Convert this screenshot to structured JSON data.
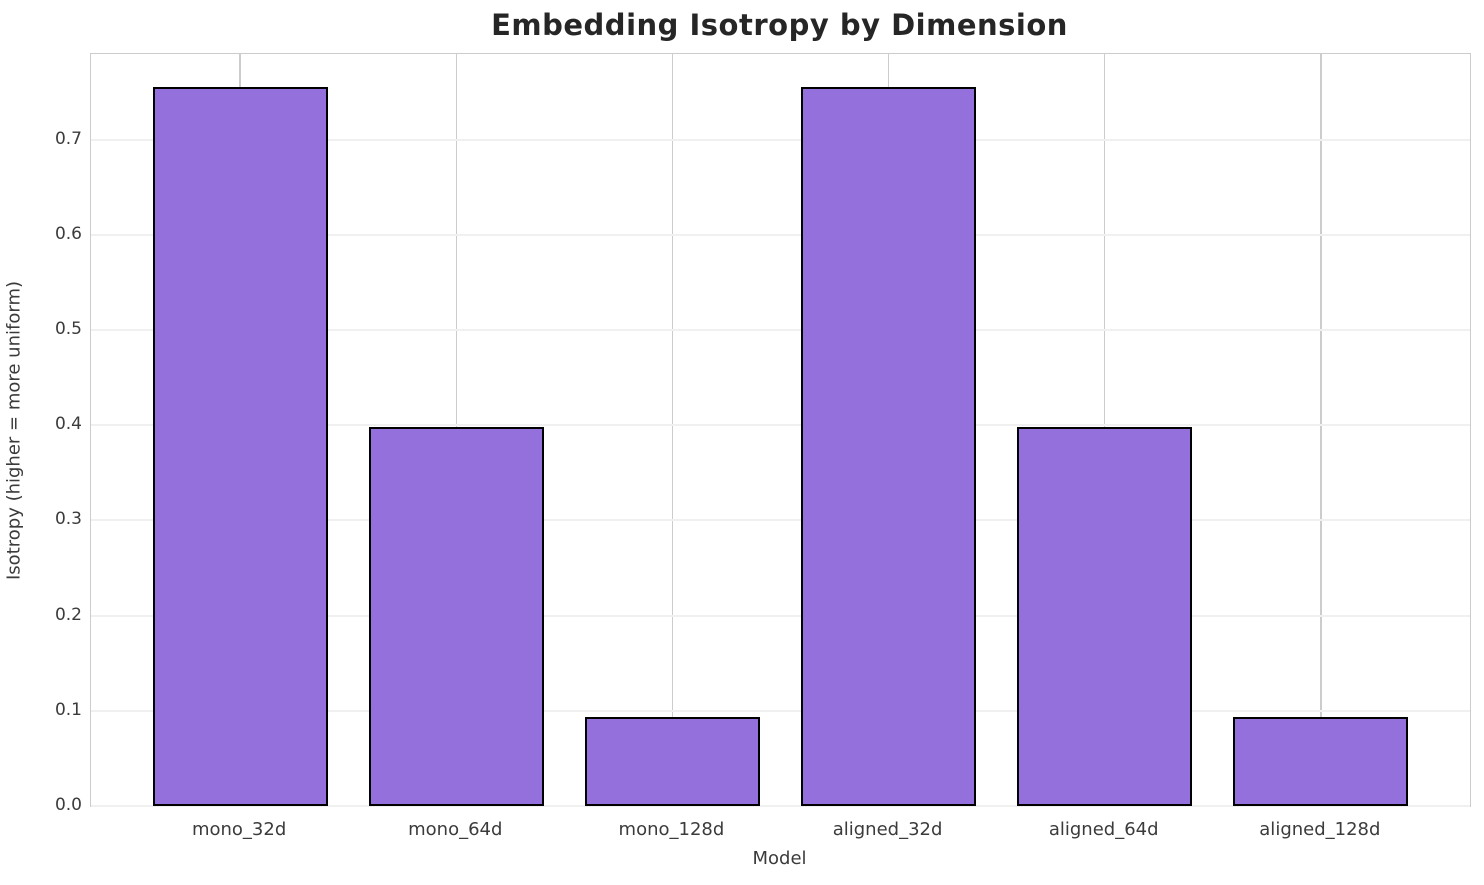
{
  "chart_data": {
    "type": "bar",
    "title": "Embedding Isotropy by Dimension",
    "xlabel": "Model",
    "ylabel": "Isotropy (higher = more uniform)",
    "categories": [
      "mono_32d",
      "mono_64d",
      "mono_128d",
      "aligned_32d",
      "aligned_64d",
      "aligned_128d"
    ],
    "values": [
      0.755,
      0.398,
      0.093,
      0.755,
      0.398,
      0.093
    ],
    "ylim": [
      0,
      0.79
    ],
    "yticks": [
      0.0,
      0.1,
      0.2,
      0.3,
      0.4,
      0.5,
      0.6,
      0.7
    ],
    "ytick_labels": [
      "0.0",
      "0.1",
      "0.2",
      "0.3",
      "0.4",
      "0.5",
      "0.6",
      "0.7"
    ],
    "grid": "both",
    "legend": "none",
    "colors": {
      "bar_fill": "#9370DB",
      "bar_edge": "#000000",
      "gridline_horizontal": "#f0f0f0",
      "gridline_vertical": "#cccccc",
      "spine": "#cccccc",
      "title_text": "#262626",
      "tick_text": "#3b3b3b"
    }
  }
}
